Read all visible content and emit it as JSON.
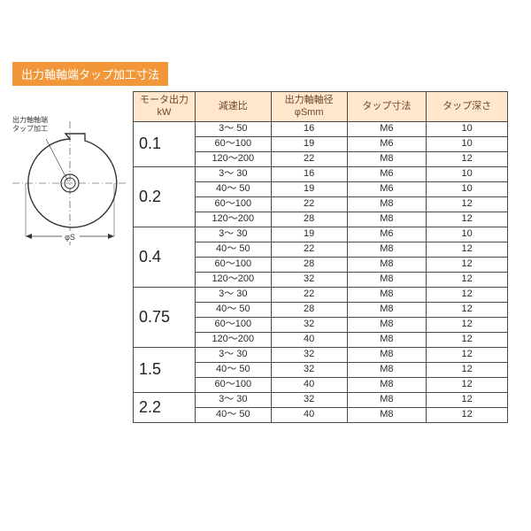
{
  "heading": {
    "text": "出力軸軸端タップ加工寸法",
    "bg": "#f29739",
    "fg": "#ffffff"
  },
  "diagram": {
    "label_line1": "出力軸軸端",
    "label_line2": "タップ加工",
    "phi_s": "φS"
  },
  "table": {
    "header_bg": "#ffe6cc",
    "border": "#4a4a4a",
    "columns": {
      "kw_l1": "モータ出力",
      "kw_l2": "kW",
      "ratio": "減速比",
      "shaft_l1": "出力軸軸径",
      "shaft_l2": "φSmm",
      "tap": "タップ寸法",
      "depth": "タップ深さ"
    },
    "groups": [
      {
        "kw": "0.1",
        "rows": [
          {
            "ratio": "3～ 50",
            "s": "16",
            "tap": "M6",
            "depth": "10"
          },
          {
            "ratio": "60～100",
            "s": "19",
            "tap": "M6",
            "depth": "10"
          },
          {
            "ratio": "120～200",
            "s": "22",
            "tap": "M8",
            "depth": "12"
          }
        ]
      },
      {
        "kw": "0.2",
        "rows": [
          {
            "ratio": "3～ 30",
            "s": "16",
            "tap": "M6",
            "depth": "10"
          },
          {
            "ratio": "40～ 50",
            "s": "19",
            "tap": "M6",
            "depth": "10"
          },
          {
            "ratio": "60～100",
            "s": "22",
            "tap": "M8",
            "depth": "12"
          },
          {
            "ratio": "120～200",
            "s": "28",
            "tap": "M8",
            "depth": "12"
          }
        ]
      },
      {
        "kw": "0.4",
        "rows": [
          {
            "ratio": "3～ 30",
            "s": "19",
            "tap": "M6",
            "depth": "10"
          },
          {
            "ratio": "40～ 50",
            "s": "22",
            "tap": "M8",
            "depth": "12"
          },
          {
            "ratio": "60～100",
            "s": "28",
            "tap": "M8",
            "depth": "12"
          },
          {
            "ratio": "120～200",
            "s": "32",
            "tap": "M8",
            "depth": "12"
          }
        ]
      },
      {
        "kw": "0.75",
        "rows": [
          {
            "ratio": "3～ 30",
            "s": "22",
            "tap": "M8",
            "depth": "12"
          },
          {
            "ratio": "40～ 50",
            "s": "28",
            "tap": "M8",
            "depth": "12"
          },
          {
            "ratio": "60～100",
            "s": "32",
            "tap": "M8",
            "depth": "12"
          },
          {
            "ratio": "120～200",
            "s": "40",
            "tap": "M8",
            "depth": "12"
          }
        ]
      },
      {
        "kw": "1.5",
        "rows": [
          {
            "ratio": "3～ 30",
            "s": "32",
            "tap": "M8",
            "depth": "12"
          },
          {
            "ratio": "40～ 50",
            "s": "32",
            "tap": "M8",
            "depth": "12"
          },
          {
            "ratio": "60～100",
            "s": "40",
            "tap": "M8",
            "depth": "12"
          }
        ]
      },
      {
        "kw": "2.2",
        "rows": [
          {
            "ratio": "3～ 30",
            "s": "32",
            "tap": "M8",
            "depth": "12"
          },
          {
            "ratio": "40～ 50",
            "s": "40",
            "tap": "M8",
            "depth": "12"
          }
        ]
      }
    ]
  }
}
